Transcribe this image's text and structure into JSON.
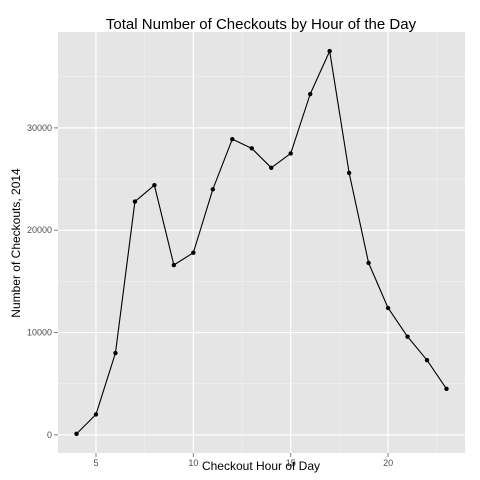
{
  "chart_data": {
    "type": "line",
    "title": "Total Number of Checkouts by Hour of the Day",
    "xlabel": "Checkout Hour of Day",
    "ylabel": "Number of Checkouts, 2014",
    "x": [
      4,
      5,
      6,
      7,
      8,
      9,
      10,
      11,
      12,
      13,
      14,
      15,
      16,
      17,
      18,
      19,
      20,
      21,
      22,
      23
    ],
    "series": [
      {
        "values": [
          100,
          2000,
          8000,
          22800,
          24400,
          16600,
          17800,
          24000,
          28900,
          28000,
          26100,
          27500,
          33300,
          37500,
          25600,
          16800,
          12400,
          9600,
          7300,
          4500
        ]
      }
    ],
    "xlim": [
      3.05,
      23.95
    ],
    "ylim": [
      -1770,
      39370
    ],
    "x_ticks": [
      5,
      10,
      15,
      20
    ],
    "x_tick_labels": [
      "5",
      "10",
      "15",
      "20"
    ],
    "y_ticks": [
      0,
      10000,
      20000,
      30000
    ],
    "y_tick_labels": [
      "0",
      "10000",
      "20000",
      "30000"
    ],
    "grid": true,
    "colors": {
      "panel_background": "#e5e5e5",
      "grid_major": "#ffffff",
      "grid_minor": "#f2f2f2",
      "line": "#000000",
      "point": "#000000",
      "tick_text": "#4d4d4d"
    }
  }
}
